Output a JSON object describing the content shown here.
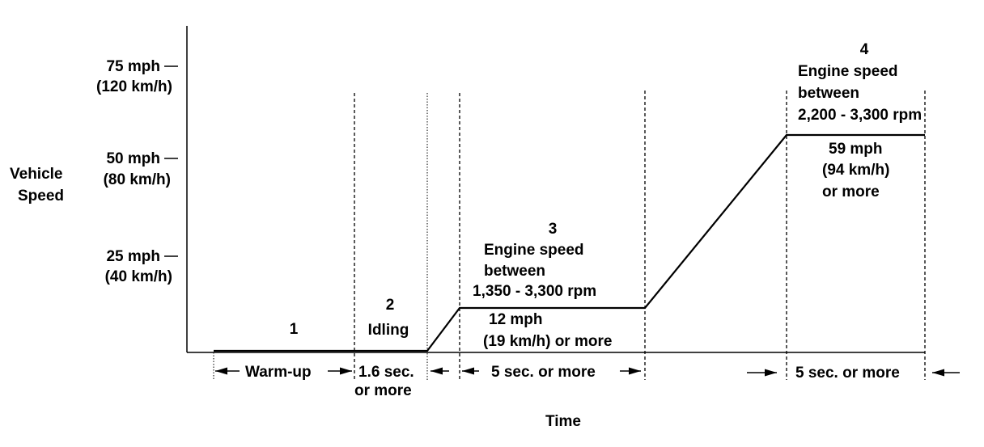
{
  "axis": {
    "y_label_1": "Vehicle",
    "y_label_2": "Speed",
    "x_label": "Time"
  },
  "ticks": [
    {
      "mph": "75 mph",
      "kmh": "(120 km/h)"
    },
    {
      "mph": "50 mph",
      "kmh": "(80 km/h)"
    },
    {
      "mph": "25 mph",
      "kmh": "(40 km/h)"
    }
  ],
  "phases": {
    "p1": {
      "num": "1"
    },
    "p2": {
      "num": "2",
      "label": "Idling"
    },
    "p3": {
      "num": "3",
      "l1": "Engine speed",
      "l2": "between",
      "l3": "1,350 - 3,300 rpm",
      "s1": "12 mph",
      "s2": "(19 km/h) or more"
    },
    "p4": {
      "num": "4",
      "l1": "Engine speed",
      "l2": "between",
      "l3": "2,200 - 3,300 rpm",
      "s1": "59 mph",
      "s2": "(94 km/h)",
      "s3": "or more"
    }
  },
  "durations": {
    "warmup": "Warm-up",
    "idle_1": "1.6 sec.",
    "idle_2": "or more",
    "p3": "5 sec. or more",
    "p4": "5 sec. or more"
  }
}
